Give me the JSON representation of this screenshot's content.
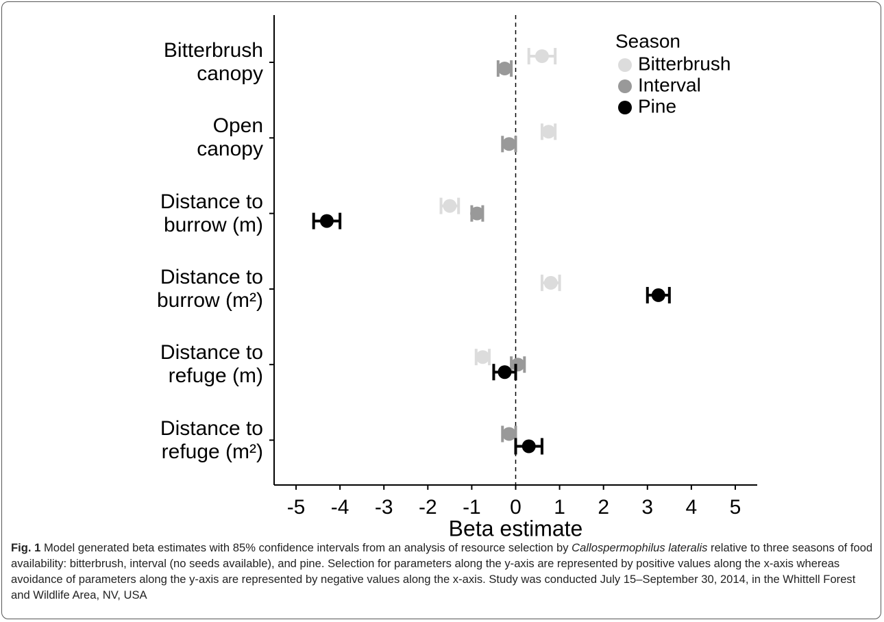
{
  "chart_data": {
    "type": "dotplot",
    "x_label": "Beta estimate",
    "legend_title": "Season",
    "categories": [
      "Bitterbrush\ncanopy",
      "Open\ncanopy",
      "Distance to\nburrow (m)",
      "Distance to\nburrow (m²)",
      "Distance to\nrefuge (m)",
      "Distance to\nrefuge (m²)"
    ],
    "series": [
      {
        "name": "Bitterbrush",
        "color": "#dcdcdc",
        "values": [
          0.6,
          0.75,
          -1.5,
          0.8,
          -0.75,
          null
        ],
        "lower": [
          0.3,
          0.6,
          -1.7,
          0.6,
          -0.9,
          null
        ],
        "upper": [
          0.9,
          0.9,
          -1.3,
          1.0,
          -0.6,
          null
        ]
      },
      {
        "name": "Interval",
        "color": "#999999",
        "values": [
          -0.25,
          -0.15,
          -0.88,
          null,
          0.05,
          -0.15
        ],
        "lower": [
          -0.4,
          -0.3,
          -1.0,
          null,
          -0.1,
          -0.3
        ],
        "upper": [
          -0.1,
          0.0,
          -0.75,
          null,
          0.2,
          0.0
        ]
      },
      {
        "name": "Pine",
        "color": "#000000",
        "values": [
          null,
          null,
          -4.3,
          3.25,
          -0.25,
          0.3
        ],
        "lower": [
          null,
          null,
          -4.6,
          3.0,
          -0.5,
          0.0
        ],
        "upper": [
          null,
          null,
          -4.0,
          3.5,
          0.0,
          0.6
        ]
      }
    ],
    "xlim": [
      -5.5,
      5.5
    ],
    "xticks": [
      -5,
      -4,
      -3,
      -2,
      -1,
      0,
      1,
      2,
      3,
      4,
      5
    ],
    "reference_line": 0,
    "legend_position": "top-right"
  },
  "caption": {
    "label": "Fig. 1",
    "text_before": " Model generated beta estimates with 85% confidence intervals from an analysis of resource selection by ",
    "species": "Callospermophilus lateralis",
    "text_after": " relative to three seasons of food availability: bitterbrush, interval (no seeds available), and pine. Selection for parameters along the y-axis are represented by positive values along the x-axis whereas avoidance of parameters along the y-axis are represented by negative values along the x-axis. Study was conducted July 15–September 30, 2014, in the Whittell Forest and Wildlife Area, NV, USA"
  }
}
